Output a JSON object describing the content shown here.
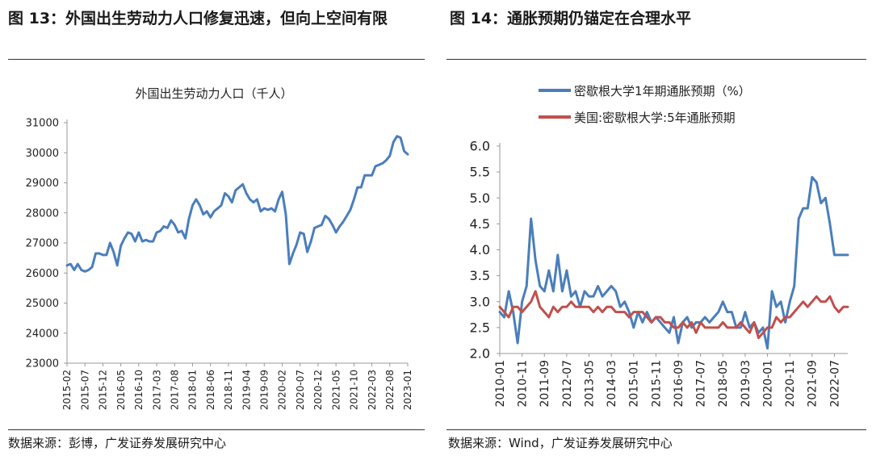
{
  "charts": {
    "left": {
      "figure_title": "图 13：外国出生劳动力人口修复迅速，但向上空间有限",
      "source": "数据来源：彭博，广发证券发展研究中心"
    },
    "right": {
      "figure_title": "图 14：通胀预期仍锚定在合理水平",
      "source": "数据来源：Wind，广发证券发展研究中心"
    }
  },
  "chart_data": [
    {
      "type": "line",
      "title": "外国出生劳动力人口（千人）",
      "xlabel": "",
      "ylabel": "",
      "ylim": [
        23000,
        31000
      ],
      "yticks": [
        "23000",
        "24000",
        "25000",
        "26000",
        "27000",
        "28000",
        "29000",
        "30000",
        "31000"
      ],
      "xticks": [
        "2015-02",
        "2015-07",
        "2015-12",
        "2016-05",
        "2016-10",
        "2017-03",
        "2017-08",
        "2018-01",
        "2018-06",
        "2018-11",
        "2019-04",
        "2019-09",
        "2020-02",
        "2020-07",
        "2020-12",
        "2021-05",
        "2021-10",
        "2022-03",
        "2022-08",
        "2023-01"
      ],
      "grid": false,
      "legend": "none",
      "colors": [
        "#4a7ebb"
      ],
      "series": [
        {
          "name": "",
          "x": [
            "2015-02",
            "2015-03",
            "2015-04",
            "2015-05",
            "2015-06",
            "2015-07",
            "2015-08",
            "2015-09",
            "2015-10",
            "2015-11",
            "2015-12",
            "2016-01",
            "2016-02",
            "2016-03",
            "2016-04",
            "2016-05",
            "2016-06",
            "2016-07",
            "2016-08",
            "2016-09",
            "2016-10",
            "2016-11",
            "2016-12",
            "2017-01",
            "2017-02",
            "2017-03",
            "2017-04",
            "2017-05",
            "2017-06",
            "2017-07",
            "2017-08",
            "2017-09",
            "2017-10",
            "2017-11",
            "2017-12",
            "2018-01",
            "2018-02",
            "2018-03",
            "2018-04",
            "2018-05",
            "2018-06",
            "2018-07",
            "2018-08",
            "2018-09",
            "2018-10",
            "2018-11",
            "2018-12",
            "2019-01",
            "2019-02",
            "2019-03",
            "2019-04",
            "2019-05",
            "2019-06",
            "2019-07",
            "2019-08",
            "2019-09",
            "2019-10",
            "2019-11",
            "2019-12",
            "2020-01",
            "2020-02",
            "2020-03",
            "2020-04",
            "2020-05",
            "2020-06",
            "2020-07",
            "2020-08",
            "2020-09",
            "2020-10",
            "2020-11",
            "2020-12",
            "2021-01",
            "2021-02",
            "2021-03",
            "2021-04",
            "2021-05",
            "2021-06",
            "2021-07",
            "2021-08",
            "2021-09",
            "2021-10",
            "2021-11",
            "2021-12",
            "2022-01",
            "2022-02",
            "2022-03",
            "2022-04",
            "2022-05",
            "2022-06",
            "2022-07",
            "2022-08",
            "2022-09",
            "2022-10",
            "2022-11",
            "2022-12",
            "2023-01"
          ],
          "values": [
            26250,
            26300,
            26100,
            26300,
            26100,
            26050,
            26100,
            26200,
            26650,
            26650,
            26600,
            26600,
            27000,
            26700,
            26250,
            26900,
            27150,
            27350,
            27300,
            27050,
            27350,
            27050,
            27100,
            27050,
            27050,
            27350,
            27400,
            27550,
            27500,
            27750,
            27600,
            27350,
            27400,
            27150,
            27800,
            28250,
            28450,
            28250,
            27950,
            28050,
            27850,
            28050,
            28150,
            28250,
            28650,
            28550,
            28350,
            28750,
            28850,
            28950,
            28650,
            28450,
            28350,
            28450,
            28050,
            28150,
            28100,
            28150,
            28050,
            28450,
            28700,
            27950,
            26300,
            26650,
            26950,
            27350,
            27300,
            26700,
            27050,
            27500,
            27550,
            27600,
            27900,
            27800,
            27600,
            27350,
            27550,
            27700,
            27900,
            28100,
            28450,
            28850,
            28850,
            29250,
            29250,
            29250,
            29550,
            29600,
            29650,
            29750,
            29900,
            30350,
            30550,
            30500,
            30050,
            29950
          ]
        }
      ]
    },
    {
      "type": "line",
      "title": "",
      "xlabel": "",
      "ylabel": "",
      "ylim": [
        2.0,
        6.0
      ],
      "yticks": [
        "2.0",
        "2.5",
        "3.0",
        "3.5",
        "4.0",
        "4.5",
        "5.0",
        "5.5",
        "6.0"
      ],
      "xticks": [
        "2010-01",
        "2010-11",
        "2011-09",
        "2012-07",
        "2013-05",
        "2014-03",
        "2015-01",
        "2015-11",
        "2016-09",
        "2017-07",
        "2018-05",
        "2019-03",
        "2020-01",
        "2020-11",
        "2021-09",
        "2022-07"
      ],
      "grid": false,
      "legend": "top",
      "colors": [
        "#4a7ebb",
        "#c0504d"
      ],
      "series": [
        {
          "name": "密歇根大学1年期通胀预期（%）",
          "x": [
            "2010-01",
            "2010-03",
            "2010-05",
            "2010-07",
            "2010-09",
            "2010-11",
            "2011-01",
            "2011-03",
            "2011-05",
            "2011-07",
            "2011-09",
            "2011-11",
            "2012-01",
            "2012-03",
            "2012-05",
            "2012-07",
            "2012-09",
            "2012-11",
            "2013-01",
            "2013-03",
            "2013-05",
            "2013-07",
            "2013-09",
            "2013-11",
            "2014-01",
            "2014-03",
            "2014-05",
            "2014-07",
            "2014-09",
            "2014-11",
            "2015-01",
            "2015-03",
            "2015-05",
            "2015-07",
            "2015-09",
            "2015-11",
            "2016-01",
            "2016-03",
            "2016-05",
            "2016-07",
            "2016-09",
            "2016-11",
            "2017-01",
            "2017-03",
            "2017-05",
            "2017-07",
            "2017-09",
            "2017-11",
            "2018-01",
            "2018-03",
            "2018-05",
            "2018-07",
            "2018-09",
            "2018-11",
            "2019-01",
            "2019-03",
            "2019-05",
            "2019-07",
            "2019-09",
            "2019-11",
            "2020-01",
            "2020-03",
            "2020-05",
            "2020-07",
            "2020-09",
            "2020-11",
            "2021-01",
            "2021-03",
            "2021-05",
            "2021-07",
            "2021-09",
            "2021-11",
            "2022-01",
            "2022-03",
            "2022-05",
            "2022-07",
            "2022-09",
            "2022-11",
            "2023-01"
          ],
          "values": [
            2.8,
            2.7,
            3.2,
            2.8,
            2.2,
            3.0,
            3.3,
            4.6,
            3.8,
            3.3,
            3.2,
            3.6,
            3.2,
            3.9,
            3.2,
            3.6,
            3.1,
            3.2,
            2.9,
            3.2,
            3.1,
            3.1,
            3.3,
            3.1,
            3.2,
            3.3,
            3.2,
            2.9,
            3.0,
            2.8,
            2.5,
            2.8,
            2.6,
            2.8,
            2.6,
            2.7,
            2.6,
            2.5,
            2.4,
            2.7,
            2.2,
            2.6,
            2.7,
            2.5,
            2.6,
            2.6,
            2.7,
            2.6,
            2.7,
            2.8,
            3.0,
            2.8,
            2.8,
            2.5,
            2.5,
            2.8,
            2.5,
            2.6,
            2.4,
            2.5,
            2.1,
            3.2,
            2.9,
            3.0,
            2.6,
            3.0,
            3.3,
            4.6,
            4.8,
            4.8,
            5.4,
            5.3,
            4.9,
            5.0,
            4.5,
            3.9,
            3.9,
            3.9,
            3.9
          ]
        },
        {
          "name": "美国:密歇根大学:5年通胀预期",
          "x": [
            "2010-01",
            "2010-03",
            "2010-05",
            "2010-07",
            "2010-09",
            "2010-11",
            "2011-01",
            "2011-03",
            "2011-05",
            "2011-07",
            "2011-09",
            "2011-11",
            "2012-01",
            "2012-03",
            "2012-05",
            "2012-07",
            "2012-09",
            "2012-11",
            "2013-01",
            "2013-03",
            "2013-05",
            "2013-07",
            "2013-09",
            "2013-11",
            "2014-01",
            "2014-03",
            "2014-05",
            "2014-07",
            "2014-09",
            "2014-11",
            "2015-01",
            "2015-03",
            "2015-05",
            "2015-07",
            "2015-09",
            "2015-11",
            "2016-01",
            "2016-03",
            "2016-05",
            "2016-07",
            "2016-09",
            "2016-11",
            "2017-01",
            "2017-03",
            "2017-05",
            "2017-07",
            "2017-09",
            "2017-11",
            "2018-01",
            "2018-03",
            "2018-05",
            "2018-07",
            "2018-09",
            "2018-11",
            "2019-01",
            "2019-03",
            "2019-05",
            "2019-07",
            "2019-09",
            "2019-11",
            "2020-01",
            "2020-03",
            "2020-05",
            "2020-07",
            "2020-09",
            "2020-11",
            "2021-01",
            "2021-03",
            "2021-05",
            "2021-07",
            "2021-09",
            "2021-11",
            "2022-01",
            "2022-03",
            "2022-05",
            "2022-07",
            "2022-09",
            "2022-11",
            "2023-01"
          ],
          "values": [
            2.9,
            2.8,
            2.7,
            2.9,
            2.9,
            2.8,
            2.9,
            3.0,
            3.2,
            2.9,
            2.8,
            2.7,
            2.9,
            2.8,
            2.9,
            2.9,
            3.0,
            2.9,
            2.9,
            2.9,
            2.9,
            2.8,
            2.9,
            2.8,
            2.9,
            2.9,
            2.8,
            2.8,
            2.8,
            2.7,
            2.8,
            2.8,
            2.8,
            2.7,
            2.6,
            2.7,
            2.7,
            2.6,
            2.6,
            2.5,
            2.5,
            2.6,
            2.5,
            2.6,
            2.4,
            2.6,
            2.5,
            2.5,
            2.5,
            2.5,
            2.6,
            2.5,
            2.5,
            2.5,
            2.6,
            2.5,
            2.4,
            2.6,
            2.3,
            2.4,
            2.5,
            2.5,
            2.7,
            2.6,
            2.7,
            2.7,
            2.8,
            2.9,
            3.0,
            2.9,
            3.0,
            3.1,
            3.0,
            3.0,
            3.1,
            2.9,
            2.8,
            2.9,
            2.9
          ]
        }
      ]
    }
  ]
}
